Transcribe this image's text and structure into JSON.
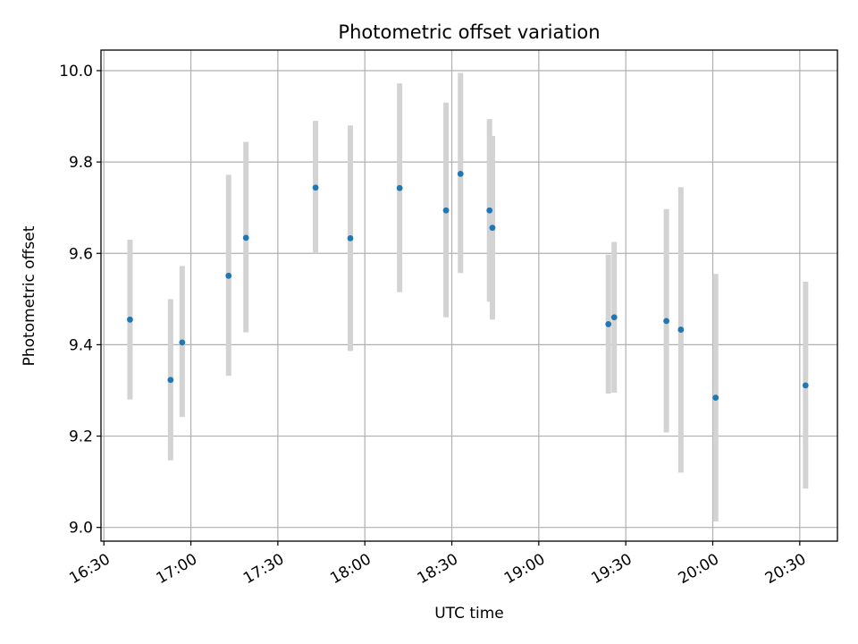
{
  "chart_data": {
    "type": "scatter",
    "title": "Photometric offset variation",
    "xlabel": "UTC time",
    "ylabel": "Photometric offset",
    "xlim": [
      "16:29",
      "20:43"
    ],
    "ylim": [
      8.97,
      10.045
    ],
    "x_ticks": [
      "16:30",
      "17:00",
      "17:30",
      "18:00",
      "18:30",
      "19:00",
      "19:30",
      "20:00",
      "20:30"
    ],
    "y_ticks": [
      9.0,
      9.2,
      9.4,
      9.6,
      9.8,
      10.0
    ],
    "y_tick_labels": [
      "9.0",
      "9.2",
      "9.4",
      "9.6",
      "9.8",
      "10.0"
    ],
    "grid": true,
    "marker_color": "#1f77b4",
    "errorbar_color": "#d3d3d3",
    "series": [
      {
        "points": [
          {
            "x": "16:39",
            "y": 9.455,
            "low": 9.28,
            "high": 9.63
          },
          {
            "x": "16:53",
            "y": 9.323,
            "low": 9.147,
            "high": 9.5
          },
          {
            "x": "16:57",
            "y": 9.405,
            "low": 9.242,
            "high": 9.572
          },
          {
            "x": "17:13",
            "y": 9.551,
            "low": 9.332,
            "high": 9.772
          },
          {
            "x": "17:19",
            "y": 9.634,
            "low": 9.427,
            "high": 9.844
          },
          {
            "x": "17:43",
            "y": 9.744,
            "low": 9.6,
            "high": 9.89
          },
          {
            "x": "17:55",
            "y": 9.633,
            "low": 9.386,
            "high": 9.88
          },
          {
            "x": "18:12",
            "y": 9.743,
            "low": 9.515,
            "high": 9.972
          },
          {
            "x": "18:28",
            "y": 9.694,
            "low": 9.46,
            "high": 9.93
          },
          {
            "x": "18:33",
            "y": 9.774,
            "low": 9.557,
            "high": 9.995
          },
          {
            "x": "18:43",
            "y": 9.694,
            "low": 9.494,
            "high": 9.894
          },
          {
            "x": "18:44",
            "y": 9.656,
            "low": 9.455,
            "high": 9.857
          },
          {
            "x": "19:24",
            "y": 9.445,
            "low": 9.293,
            "high": 9.597
          },
          {
            "x": "19:26",
            "y": 9.46,
            "low": 9.295,
            "high": 9.625
          },
          {
            "x": "19:44",
            "y": 9.452,
            "low": 9.208,
            "high": 9.697
          },
          {
            "x": "19:49",
            "y": 9.433,
            "low": 9.12,
            "high": 9.745
          },
          {
            "x": "20:01",
            "y": 9.284,
            "low": 9.013,
            "high": 9.555
          },
          {
            "x": "20:32",
            "y": 9.311,
            "low": 9.085,
            "high": 9.538
          }
        ]
      }
    ]
  }
}
